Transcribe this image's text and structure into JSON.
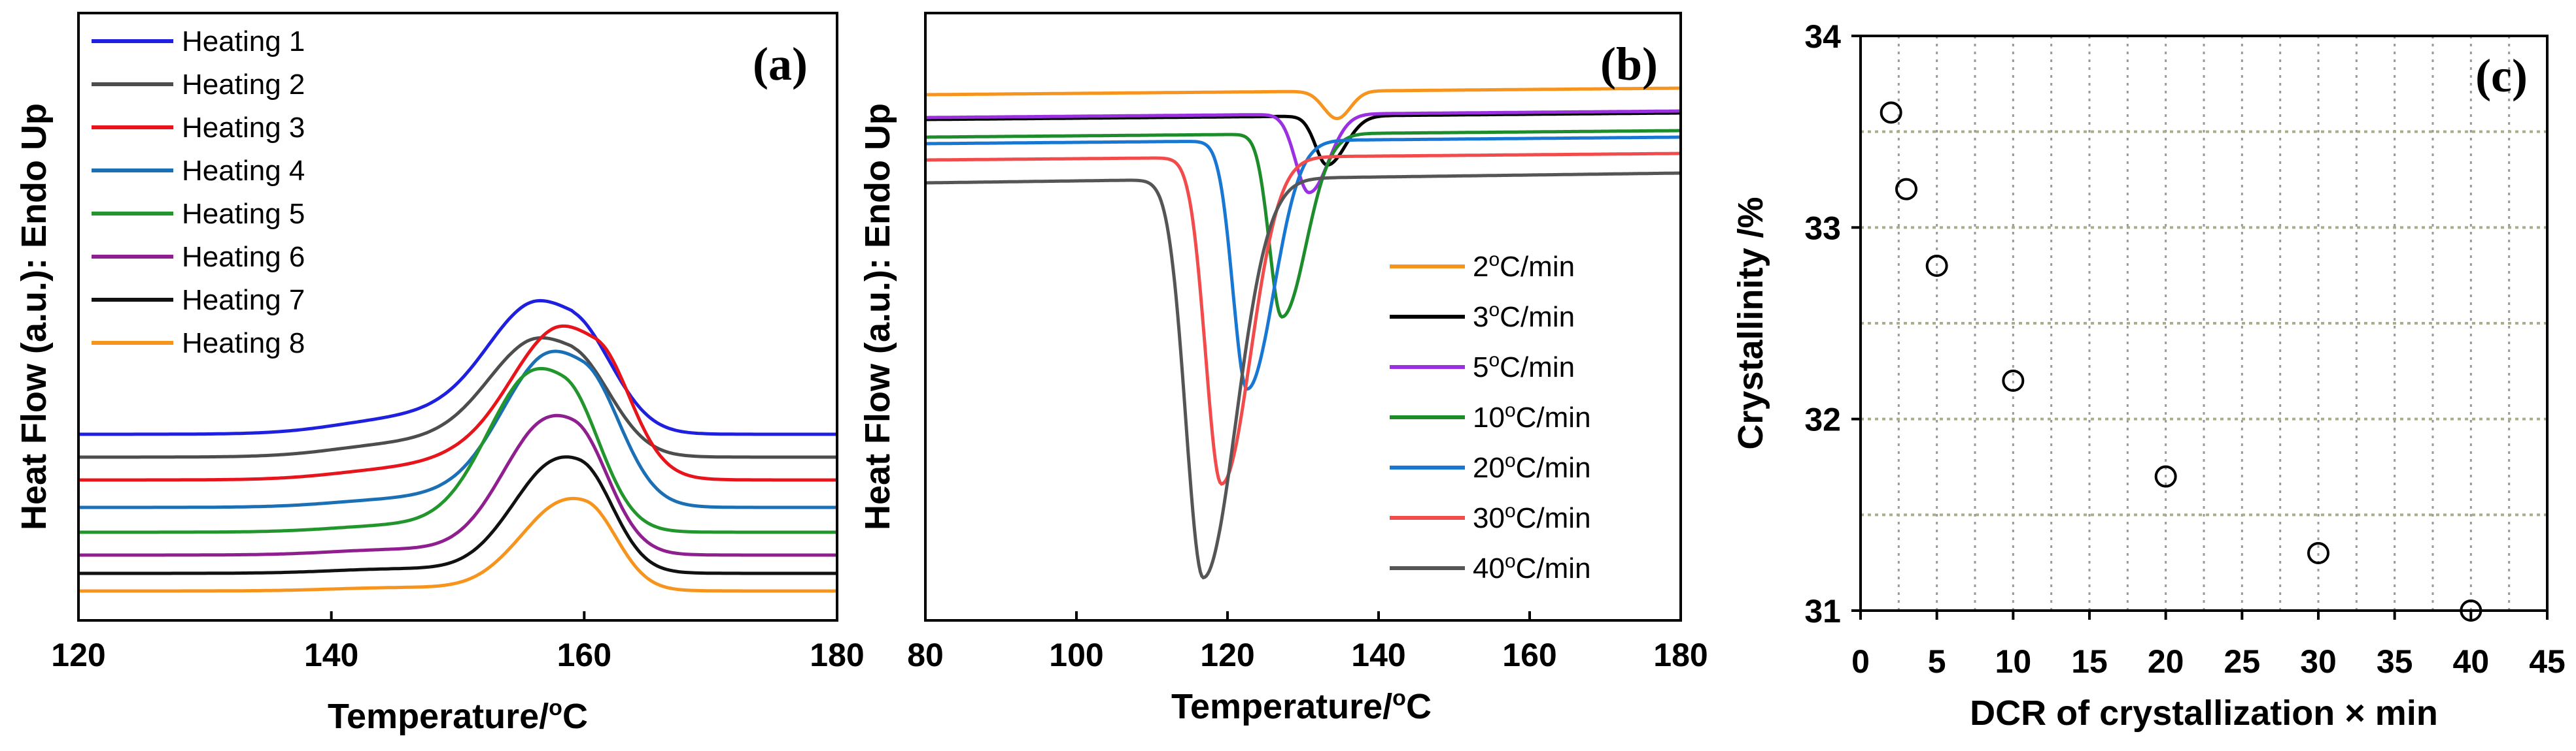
{
  "chart_data": [
    {
      "panel": "(a)",
      "type": "line",
      "xlabel": "Temperature/",
      "xlabel_sup": "o",
      "xlabel_unit": "C",
      "ylabel": "Heat Flow (a.u.): Endo Up",
      "xlim": [
        120,
        180
      ],
      "xticks": [
        "120",
        "140",
        "160",
        "180"
      ],
      "yticks": [],
      "legend_position": "top-left",
      "series": [
        {
          "name": "Heating 1",
          "color": "#1f1fe0",
          "baseline": 240,
          "shoulder_offset": 25,
          "peak_x": 159.0,
          "peak_height": 150,
          "sigma_left": 5.6,
          "sigma_right": 3.0,
          "tail": 0.0
        },
        {
          "name": "Heating 2",
          "color": "#4d4d4d",
          "baseline": 205,
          "shoulder_offset": 22,
          "peak_x": 159.0,
          "peak_height": 135,
          "sigma_left": 5.4,
          "sigma_right": 2.9,
          "tail": 0.0
        },
        {
          "name": "Heating 3",
          "color": "#e8141b",
          "baseline": 170,
          "shoulder_offset": 18,
          "peak_x": 161.0,
          "peak_height": 180,
          "sigma_left": 6.0,
          "sigma_right": 2.6,
          "tail": 0.0
        },
        {
          "name": "Heating 4",
          "color": "#1a6fb5",
          "baseline": 128,
          "shoulder_offset": 14,
          "peak_x": 160.0,
          "peak_height": 190,
          "sigma_left": 5.2,
          "sigma_right": 2.8,
          "tail": 0.0
        },
        {
          "name": "Heating 5",
          "color": "#22962c",
          "baseline": 90,
          "shoulder_offset": 12,
          "peak_x": 158.5,
          "peak_height": 205,
          "sigma_left": 4.6,
          "sigma_right": 2.7,
          "tail": 0.0
        },
        {
          "name": "Heating 6",
          "color": "#8f1f8f",
          "baseline": 55,
          "shoulder_offset": 10,
          "peak_x": 159.3,
          "peak_height": 178,
          "sigma_left": 4.0,
          "sigma_right": 2.6,
          "tail": 0.0
        },
        {
          "name": "Heating 7",
          "color": "#111111",
          "baseline": 27,
          "shoulder_offset": 8,
          "peak_x": 159.8,
          "peak_height": 150,
          "sigma_left": 3.7,
          "sigma_right": 2.5,
          "tail": 0.0
        },
        {
          "name": "Heating 8",
          "color": "#f7941d",
          "baseline": 0,
          "shoulder_offset": 6,
          "peak_x": 160.2,
          "peak_height": 120,
          "sigma_left": 3.5,
          "sigma_right": 2.4,
          "tail": 0.0
        }
      ]
    },
    {
      "panel": "(b)",
      "type": "line",
      "xlabel": "Temperature/",
      "xlabel_sup": "o",
      "xlabel_unit": "C",
      "ylabel": "Heat Flow (a.u.): Endo Up",
      "xlim": [
        80,
        180
      ],
      "xticks": [
        "80",
        "100",
        "120",
        "140",
        "160",
        "180"
      ],
      "yticks": [],
      "legend_position": "right",
      "series": [
        {
          "name": "2",
          "unit": "C/min",
          "color": "#f7941d",
          "level": 0,
          "slope": 0.0,
          "peak_x": 134.5,
          "depth": 42,
          "sigma_left": 1.6,
          "sigma_right": 1.1
        },
        {
          "name": "3",
          "unit": "C/min",
          "color": "#000000",
          "level": 38,
          "slope": 0.0,
          "peak_x": 133.2,
          "depth": 75,
          "sigma_left": 1.4,
          "sigma_right": 1.5
        },
        {
          "name": "5",
          "unit": "C/min",
          "color": "#9b30e0",
          "level": 35,
          "slope": 0.0,
          "peak_x": 130.8,
          "depth": 120,
          "sigma_left": 1.6,
          "sigma_right": 1.6
        },
        {
          "name": "10",
          "unit": "C/min",
          "color": "#1d8c2a",
          "level": 65,
          "slope": 0.0,
          "peak_x": 127.2,
          "depth": 280,
          "sigma_left": 1.5,
          "sigma_right": 2.0
        },
        {
          "name": "20",
          "unit": "C/min",
          "color": "#1877d2",
          "level": 75,
          "slope": 0.0,
          "peak_x": 122.6,
          "depth": 380,
          "sigma_left": 1.7,
          "sigma_right": 2.2
        },
        {
          "name": "30",
          "unit": "C/min",
          "color": "#f24b4b",
          "level": 100,
          "slope": 0.0,
          "peak_x": 119.2,
          "depth": 500,
          "sigma_left": 1.9,
          "sigma_right": 2.4
        },
        {
          "name": "40",
          "unit": "C/min",
          "color": "#555555",
          "level": 135,
          "slope": 0.0,
          "peak_x": 116.8,
          "depth": 610,
          "sigma_left": 2.1,
          "sigma_right": 2.7
        }
      ]
    },
    {
      "panel": "(c)",
      "type": "scatter",
      "xlabel": "DCR of crystallization × min",
      "ylabel": "Crystallinity /%",
      "xlim": [
        0,
        45
      ],
      "ylim": [
        31,
        34
      ],
      "xticks": [
        "0",
        "5",
        "10",
        "15",
        "20",
        "25",
        "30",
        "35",
        "40",
        "45"
      ],
      "yticks": [
        "31",
        "32",
        "33",
        "34"
      ],
      "grid": true,
      "x": [
        2,
        3,
        5,
        10,
        20,
        30,
        40
      ],
      "y": [
        33.6,
        33.2,
        32.8,
        32.2,
        31.7,
        31.3,
        31.0
      ]
    }
  ]
}
